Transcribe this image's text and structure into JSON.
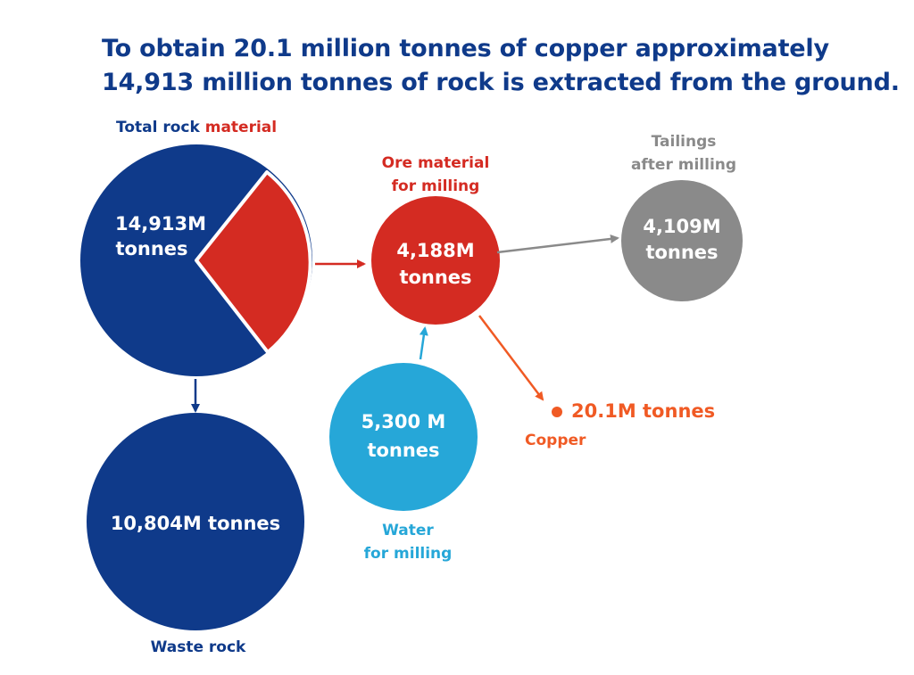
{
  "headline": {
    "line1": "To obtain 20.1 million tonnes of copper approximately",
    "line2": "14,913 million tonnes of rock is extracted from the ground."
  },
  "total_rock": {
    "label_part1": "Total rock",
    "label_part2": "material",
    "value_line1": "14,913M",
    "value_line2": "tonnes"
  },
  "ore": {
    "label_line1": "Ore material",
    "label_line2": "for milling",
    "value_line1": "4,188M",
    "value_line2": "tonnes"
  },
  "tailings": {
    "label_line1": "Tailings",
    "label_line2": "after milling",
    "value_line1": "4,109M",
    "value_line2": "tonnes"
  },
  "water": {
    "label_line1": "Water",
    "label_line2": "for milling",
    "value_line1": "5,300 M",
    "value_line2": "tonnes"
  },
  "copper": {
    "value": "20.1M tonnes",
    "label": "Copper"
  },
  "waste": {
    "value": "10,804M tonnes",
    "label": "Waste rock"
  },
  "colors": {
    "navy": "#0f3a8a",
    "red": "#d42b22",
    "gray": "#8a8a8a",
    "cyan": "#26a7d8",
    "orange": "#f05a24"
  }
}
